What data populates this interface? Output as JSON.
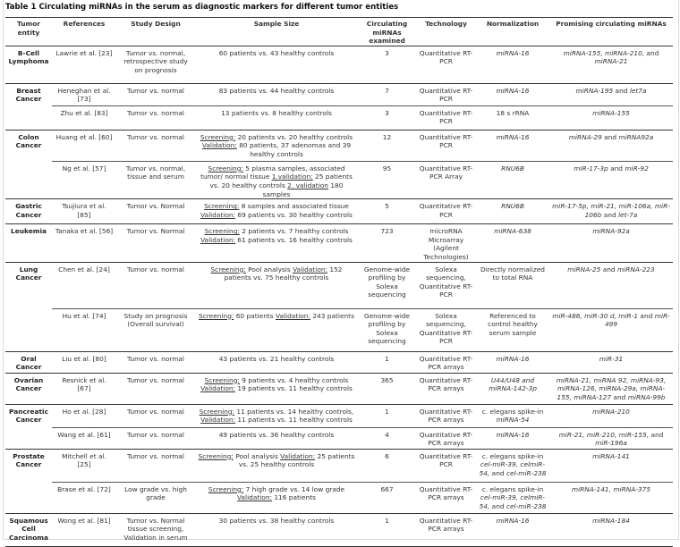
{
  "title": "Table 1 Circulating miRNAs in the serum as diagnostic markers for different tumor entities",
  "headers": [
    "Tumor entity",
    "References",
    "Study Design",
    "Sample Size",
    "Circulating miRNAs examined",
    "Technology",
    "Normalization",
    "Promising circulating miRNAs"
  ],
  "groups": [
    {
      "entity": "B-Cell Lymphoma",
      "studies": [
        {
          "ref": "Lawrie et al. [23]",
          "design": "Tumor vs. normal, retrospective study on prognosis",
          "sample": [
            {
              "t": "60 patients vs. 43 healthy controls"
            }
          ],
          "n": "3",
          "tech": "Quantitative RT-PCR",
          "norm": [
            {
              "t": "miRNA-16",
              "i": true
            }
          ],
          "mirnas": [
            {
              "t": "miRNA-155, miRNA-210,",
              "i": true
            },
            {
              "t": " and "
            },
            {
              "t": "miRNA-21",
              "i": true
            }
          ]
        }
      ]
    },
    {
      "entity": "Breast Cancer",
      "studies": [
        {
          "ref": "Heneghan et al. [73]",
          "design": "Tumor vs. normal",
          "sample": [
            {
              "t": "83 patients vs. 44 healthy controls"
            }
          ],
          "n": "7",
          "tech": "Quantitative RT-PCR",
          "norm": [
            {
              "t": "miRNA-16",
              "i": true
            }
          ],
          "mirnas": [
            {
              "t": "miRNA-195",
              "i": true
            },
            {
              "t": " and "
            },
            {
              "t": "let7a",
              "i": true
            }
          ]
        },
        {
          "ref": "Zhu et al. [83]",
          "design": "Tumor vs. normal",
          "sample": [
            {
              "t": "13 patients vs. 8 healthy controls"
            }
          ],
          "n": "3",
          "tech": "Quantitative RT-PCR",
          "norm": [
            {
              "t": "18 s rRNA"
            }
          ],
          "mirnas": [
            {
              "t": "miRNA-155",
              "i": true
            }
          ]
        }
      ]
    },
    {
      "entity": "Colon Cancer",
      "studies": [
        {
          "ref": "Huang et al. [60]",
          "design": "Tumor vs. normal",
          "sample": [
            {
              "t": "Screening:",
              "u": true
            },
            {
              "t": " 20 patients vs. 20 healthy controls "
            },
            {
              "t": "Validation:",
              "u": true
            },
            {
              "t": " 80 patients, 37 adenomas and 39 healthy controls"
            }
          ],
          "n": "12",
          "tech": "Quantitative RT-PCR",
          "norm": [
            {
              "t": "miRNA-16",
              "i": true
            }
          ],
          "mirnas": [
            {
              "t": "miRNA-29",
              "i": true
            },
            {
              "t": " and "
            },
            {
              "t": "miRNA92a",
              "i": true
            }
          ]
        },
        {
          "ref": "Ng et al. [57]",
          "design": "Tumor vs. normal, tissue and serum",
          "sample": [
            {
              "t": "Screening:",
              "u": true
            },
            {
              "t": " 5 plasma samples, associated tumor/ normal tissue "
            },
            {
              "t": "1.validation:",
              "u": true
            },
            {
              "t": " 25 patients vs. 20 healthy controls "
            },
            {
              "t": "2. validation",
              "u": true
            },
            {
              "t": " 180 samples"
            }
          ],
          "n": "95",
          "tech": "Quantitative RT-PCR Array",
          "norm": [
            {
              "t": "RNU6B",
              "i": true
            }
          ],
          "mirnas": [
            {
              "t": "miR-17-3p",
              "i": true
            },
            {
              "t": " and "
            },
            {
              "t": "miR-92",
              "i": true
            }
          ]
        }
      ]
    },
    {
      "entity": "Gastric Cancer",
      "studies": [
        {
          "ref": "Tsujiura et al. [85]",
          "design": "Tumor vs. Normal",
          "sample": [
            {
              "t": "Screening:",
              "u": true
            },
            {
              "t": " 8 samples and associated tissue "
            },
            {
              "t": "Validation:",
              "u": true
            },
            {
              "t": " 69 patients vs. 30 healthy controls"
            }
          ],
          "n": "5",
          "tech": "Quantitative RT-PCR",
          "norm": [
            {
              "t": "RNU6B",
              "i": true
            }
          ],
          "mirnas": [
            {
              "t": "miR-17-5p, miR-21, miR-106a, miR-106b",
              "i": true
            },
            {
              "t": " and "
            },
            {
              "t": "let-7a",
              "i": true
            }
          ]
        }
      ]
    },
    {
      "entity": "Leukemia",
      "studies": [
        {
          "ref": "Tanaka et al. [56]",
          "design": "Tumor vs. Normal",
          "sample": [
            {
              "t": "Screening:",
              "u": true
            },
            {
              "t": " 2 patients vs. 7 healthy controls "
            },
            {
              "t": "Validation:",
              "u": true
            },
            {
              "t": " 61 patients vs. 16 healthy controls"
            }
          ],
          "n": "723",
          "tech": "microRNA Microarray (Agilent Technologies)",
          "norm": [
            {
              "t": "miRNA-638",
              "i": true
            }
          ],
          "mirnas": [
            {
              "t": "miRNA-92a",
              "i": true
            }
          ]
        }
      ]
    },
    {
      "entity": "Lung Cancer",
      "studies": [
        {
          "ref": "Chen et al. [24]",
          "design": "Tumor vs. normal",
          "sample": [
            {
              "t": "Screening:",
              "u": true
            },
            {
              "t": " Pool analysis "
            },
            {
              "t": "Validation:",
              "u": true
            },
            {
              "t": " 152 patients vs. 75 healthy controls"
            }
          ],
          "n": "Genome-wide profiling by Solexa sequencing",
          "tech": "Solexa sequencing, Quantitative RT-PCR",
          "norm": [
            {
              "t": "Directly normalized to total RNA"
            }
          ],
          "mirnas": [
            {
              "t": "miRNA-25",
              "i": true
            },
            {
              "t": " and "
            },
            {
              "t": "miRNA-223",
              "i": true
            }
          ]
        },
        {
          "ref": "Hu et al. [74]",
          "design": "Study on prognosis (Overall survival)",
          "sample": [
            {
              "t": "Screening:",
              "u": true
            },
            {
              "t": " 60 patients "
            },
            {
              "t": "Validation:",
              "u": true
            },
            {
              "t": " 243 patients"
            }
          ],
          "n": "Genome-wide profiling by Solexa sequencing",
          "tech": "Solexa sequencing, Quantitative RT-PCR",
          "norm": [
            {
              "t": "Referenced to control healthy serum sample"
            }
          ],
          "mirnas": [
            {
              "t": "miR-486, miR-30 d, miR-1",
              "i": true
            },
            {
              "t": " and "
            },
            {
              "t": "miR- 499",
              "i": true
            }
          ]
        }
      ]
    },
    {
      "entity": "Oral Cancer",
      "studies": [
        {
          "ref": "Liu et al. [80]",
          "design": "Tumor vs. normal",
          "sample": [
            {
              "t": "43 patients vs. 21 healthy controls"
            }
          ],
          "n": "1",
          "tech": "Quantitative RT-PCR arrays",
          "norm": [
            {
              "t": "miRNA-16",
              "i": true
            }
          ],
          "mirnas": [
            {
              "t": "miR-31",
              "i": true
            }
          ]
        }
      ]
    },
    {
      "entity": "Ovarian Cancer",
      "studies": [
        {
          "ref": "Resnick et al. [67]",
          "design": "Tumor vs. normal",
          "sample": [
            {
              "t": "Screening:",
              "u": true
            },
            {
              "t": " 9 patients vs. 4 healthy controls "
            },
            {
              "t": "Validation:",
              "u": true
            },
            {
              "t": " 19 patients vs. 11 healthy controls"
            }
          ],
          "n": "365",
          "tech": "Quantitative RT-PCR arrays",
          "norm": [
            {
              "t": "U44/U48 and miRNA-142-3p",
              "i": true
            }
          ],
          "mirnas": [
            {
              "t": "miRNA-21, miRNA 92, miRNA-93, miRNA-126, miRNA-29a, miRNA-155, miRNA-127",
              "i": true
            },
            {
              "t": " and "
            },
            {
              "t": "miRNA-99b",
              "i": true
            }
          ]
        }
      ]
    },
    {
      "entity": "Pancreatic Cancer",
      "studies": [
        {
          "ref": "Ho et al. [28]",
          "design": "Tumor vs. normal",
          "sample": [
            {
              "t": "Screening:",
              "u": true
            },
            {
              "t": " 11 patients vs. 14 healthy controls, "
            },
            {
              "t": "Validation:",
              "u": true
            },
            {
              "t": " 11 patients vs. 11 healthy controls"
            }
          ],
          "n": "1",
          "tech": "Quantitative RT-PCR arrays",
          "norm": [
            {
              "t": "c. elegans spike-in "
            },
            {
              "t": "miRNA-54",
              "i": true
            }
          ],
          "mirnas": [
            {
              "t": "miRNA-210",
              "i": true
            }
          ]
        },
        {
          "ref": "Wang et al. [61]",
          "design": "Tumor vs. normal",
          "sample": [
            {
              "t": "49 patients vs. 36 healthy controls"
            }
          ],
          "n": "4",
          "tech": "Quantitative RT-PCR arrays",
          "norm": [
            {
              "t": "miRNA-16",
              "i": true
            }
          ],
          "mirnas": [
            {
              "t": "miR-21, miR-210, miR-155,",
              "i": true
            },
            {
              "t": " and "
            },
            {
              "t": "miR-196a",
              "i": true
            }
          ]
        }
      ]
    },
    {
      "entity": "Prostate Cancer",
      "studies": [
        {
          "ref": "Mitchell et al. [25]",
          "design": "Tumor vs. normal",
          "sample": [
            {
              "t": "Screening:",
              "u": true
            },
            {
              "t": " Pool analysis "
            },
            {
              "t": "Validation:",
              "u": true
            },
            {
              "t": " 25 patients vs. 25 healthy controls"
            }
          ],
          "n": "6",
          "tech": "Quantitative RT-PCR",
          "norm": [
            {
              "t": "c. elegans spike-in "
            },
            {
              "t": "cel-miR-39, celmiR-54,",
              "i": true
            },
            {
              "t": " and "
            },
            {
              "t": "cel-miR-238",
              "i": true
            }
          ],
          "mirnas": [
            {
              "t": "miRNA-141",
              "i": true
            }
          ]
        },
        {
          "ref": "Brase et al. [72]",
          "design": "Low grade vs. high grade",
          "sample": [
            {
              "t": "Screening:",
              "u": true
            },
            {
              "t": " 7 high grade vs. 14 low grade "
            },
            {
              "t": "Validation:",
              "u": true
            },
            {
              "t": " 116 patients"
            }
          ],
          "n": "667",
          "tech": "Quantitative RT-PCR arrays",
          "norm": [
            {
              "t": "c. elegans spike-in "
            },
            {
              "t": "cel-miR-39, celmiR-54,",
              "i": true
            },
            {
              "t": " and "
            },
            {
              "t": "cel-miR-238",
              "i": true
            }
          ],
          "mirnas": [
            {
              "t": "miRNA-141, miRNA-375",
              "i": true
            }
          ]
        }
      ]
    },
    {
      "entity": "Squamous Cell Carcinoma",
      "studies": [
        {
          "ref": "Wong et al. [81]",
          "design": "Tumor vs. Normal tissue screening, Validation in serum",
          "sample": [
            {
              "t": "30 patients vs. 38 healthy controls"
            }
          ],
          "n": "1",
          "tech": "Quantitative RT-PCR arrays",
          "norm": [
            {
              "t": "miRNA-16",
              "i": true
            }
          ],
          "mirnas": [
            {
              "t": "miRNA-184",
              "i": true
            }
          ]
        }
      ]
    }
  ]
}
